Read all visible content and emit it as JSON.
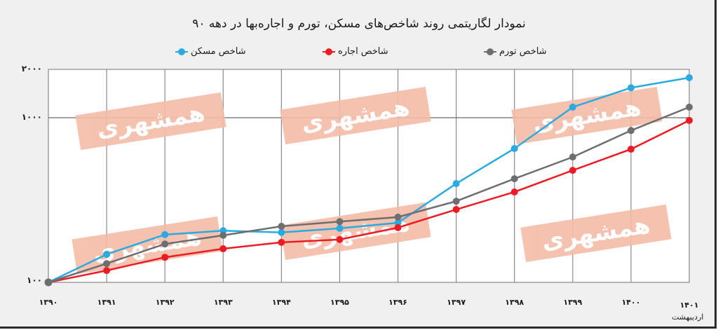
{
  "title": "نمودار لگاریتمی روند شاخص‌های مسکن، تورم و اجاره‌بها در دهه ۹۰",
  "legend": [
    {
      "label": "شاخص مسکن",
      "color": "#29abe2"
    },
    {
      "label": "شاخص اجاره",
      "color": "#ed1c24"
    },
    {
      "label": "شاخص تورم",
      "color": "#6d6e71"
    }
  ],
  "watermark": "همشهری",
  "y_ticks": [
    {
      "label": "۲۰۰۰",
      "value": 2000
    },
    {
      "label": "۱۰۰۰",
      "value": 1000
    },
    {
      "label": "۱۰۰",
      "value": 100
    }
  ],
  "x_ticks": [
    "۱۳۹۰",
    "۱۳۹۱",
    "۱۳۹۲",
    "۱۳۹۳",
    "۱۳۹۴",
    "۱۳۹۵",
    "۱۳۹۶",
    "۱۳۹۷",
    "۱۳۹۸",
    "۱۳۹۹",
    "۱۴۰۰",
    "۱۴۰۱"
  ],
  "x_last_note": "اردیبهشت",
  "chart_data": {
    "type": "line",
    "title": "نمودار لگاریتمی روند شاخص‌های مسکن، تورم و اجاره‌بها در دهه ۹۰",
    "xlabel": "",
    "ylabel": "",
    "yscale": "log",
    "ylim": [
      100,
      2000
    ],
    "grid": true,
    "legend_position": "top",
    "x": [
      "1390",
      "1391",
      "1392",
      "1393",
      "1394",
      "1395",
      "1396",
      "1397",
      "1398",
      "1399",
      "1400",
      "1401 (Ordibehesht)"
    ],
    "series": [
      {
        "name": "شاخص مسکن",
        "color": "#29abe2",
        "values": [
          100,
          148,
          195,
          206,
          201,
          213,
          230,
          398,
          650,
          1160,
          1520,
          1750
        ]
      },
      {
        "name": "شاخص اجاره",
        "color": "#ed1c24",
        "values": [
          100,
          118,
          142,
          160,
          175,
          182,
          215,
          277,
          354,
          479,
          644,
          963
        ]
      },
      {
        "name": "شاخص تورم",
        "color": "#6d6e71",
        "values": [
          100,
          130,
          171,
          193,
          219,
          234,
          249,
          311,
          426,
          577,
          836,
          1160
        ]
      }
    ]
  }
}
